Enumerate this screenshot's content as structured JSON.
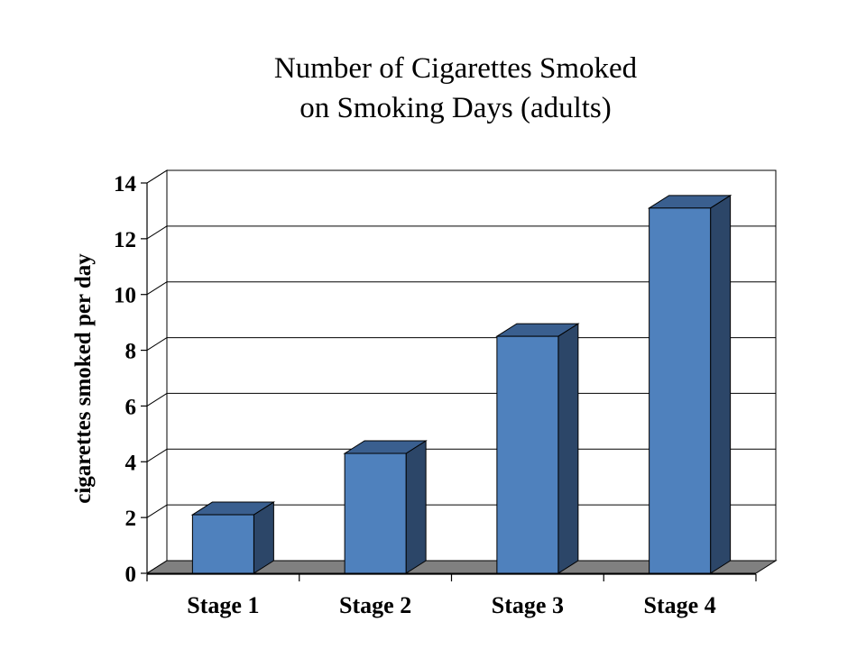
{
  "chart_data": {
    "type": "bar",
    "title_lines": [
      "Number of Cigarettes Smoked",
      "on Smoking Days (adults)"
    ],
    "ylabel": "cigarettes smoked per day",
    "xlabel": "",
    "categories": [
      "Stage 1",
      "Stage 2",
      "Stage 3",
      "Stage 4"
    ],
    "values": [
      2.1,
      4.3,
      8.5,
      13.1
    ],
    "ylim": [
      0,
      14
    ],
    "yticks": [
      "0",
      "2",
      "4",
      "6",
      "8",
      "10",
      "12",
      "14"
    ],
    "grid": true,
    "legend": "none",
    "style": "3d-column",
    "colors": {
      "bar_front": "#4f81bd",
      "bar_side": "#2c4668",
      "bar_top": "#3a5f8f",
      "floor": "#808080",
      "grid": "#000000"
    }
  }
}
